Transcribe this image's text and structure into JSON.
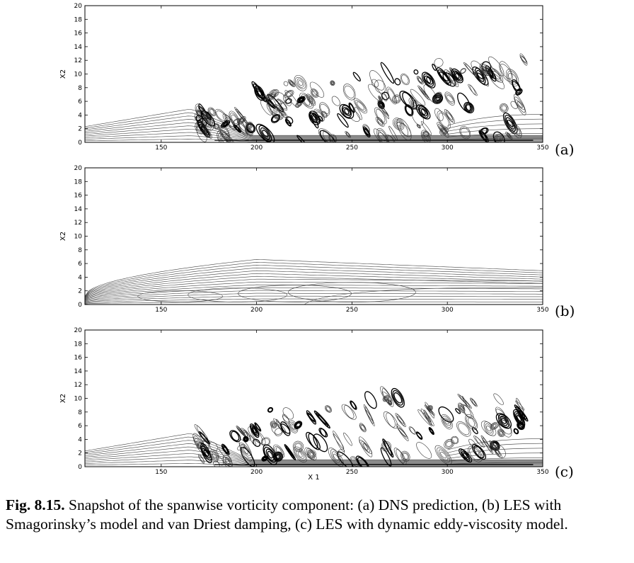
{
  "chart_data": [
    {
      "type": "contour",
      "panel_label": "(a)",
      "xlabel": "",
      "ylabel": "X2",
      "xlim": [
        110,
        350
      ],
      "ylim": [
        0,
        20
      ],
      "x_ticks": [
        150,
        200,
        250,
        300,
        350
      ],
      "y_ticks": [
        0,
        2,
        4,
        6,
        8,
        10,
        12,
        14,
        16,
        18,
        20
      ],
      "grid": false
    },
    {
      "type": "contour",
      "panel_label": "(b)",
      "xlabel": "",
      "ylabel": "X2",
      "xlim": [
        110,
        350
      ],
      "ylim": [
        0,
        20
      ],
      "x_ticks": [
        150,
        200,
        250,
        300,
        350
      ],
      "y_ticks": [
        0,
        2,
        4,
        6,
        8,
        10,
        12,
        14,
        16,
        18,
        20
      ],
      "grid": false
    },
    {
      "type": "contour",
      "panel_label": "(c)",
      "xlabel": "X 1",
      "ylabel": "X2",
      "xlim": [
        110,
        350
      ],
      "ylim": [
        0,
        20
      ],
      "x_ticks": [
        150,
        200,
        250,
        300,
        350
      ],
      "y_ticks": [
        0,
        2,
        4,
        6,
        8,
        10,
        12,
        14,
        16,
        18,
        20
      ],
      "grid": false
    }
  ],
  "caption": {
    "label": "Fig. 8.15.",
    "text": " Snapshot of the spanwise vorticity component: (a) DNS prediction, (b) LES with Smagorinsky’s model and van Driest damping, (c) LES with dynamic eddy-viscosity model."
  }
}
